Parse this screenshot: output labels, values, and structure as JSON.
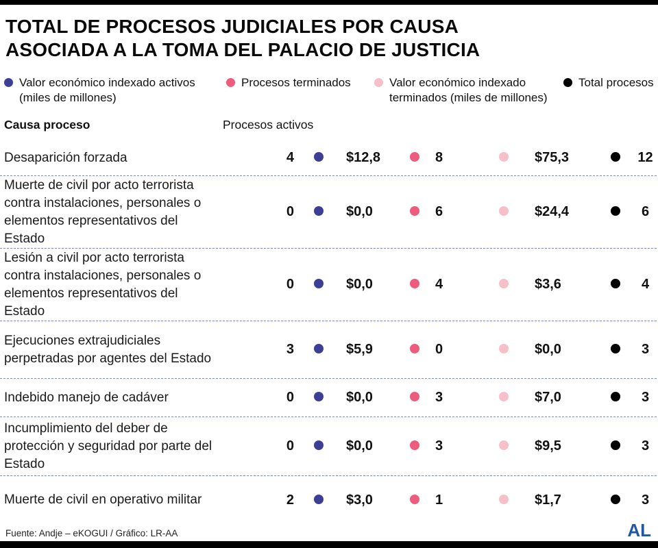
{
  "title": {
    "line1": "TOTAL DE PROCESOS JUDICIALES POR CAUSA",
    "line2": "ASOCIADA A LA TOMA DEL PALACIO DE JUSTICIA"
  },
  "legend": [
    {
      "label": "Valor económico indexado activos (miles de millones)"
    },
    {
      "label": "Procesos terminados"
    },
    {
      "label": "Valor económico indexado terminados (miles de millones)"
    },
    {
      "label": "Total procesos"
    }
  ],
  "colors": {
    "active_value": "#3c3f94",
    "terminated": "#ed5b7d",
    "terminated_value": "#f6c0ca",
    "total": "#000000",
    "dashed_line": "#8089b9",
    "accent_logo": "#2457a0"
  },
  "columns": {
    "cause": "Causa proceso",
    "active": "Procesos activos"
  },
  "rows": [
    {
      "cause": "Desaparición forzada",
      "active": "4",
      "active_value": "$12,8",
      "terminated": "8",
      "terminated_value": "$75,3",
      "total": "12"
    },
    {
      "cause": "Muerte de civil por acto terrorista contra instalaciones, personales o elementos representativos del Estado",
      "active": "0",
      "active_value": "$0,0",
      "terminated": "6",
      "terminated_value": "$24,4",
      "total": "6"
    },
    {
      "cause": "Lesión a civil por acto terrorista contra instalaciones, personales o elementos representativos del Estado",
      "active": "0",
      "active_value": "$0,0",
      "terminated": "4",
      "terminated_value": "$3,6",
      "total": "4"
    },
    {
      "cause": "Ejecuciones extrajudiciales perpetradas por agentes del Estado",
      "active": "3",
      "active_value": "$5,9",
      "terminated": "0",
      "terminated_value": "$0,0",
      "total": "3"
    },
    {
      "cause": "Indebido manejo de cadáver",
      "active": "0",
      "active_value": "$0,0",
      "terminated": "3",
      "terminated_value": "$7,0",
      "total": "3"
    },
    {
      "cause": "Incumplimiento del deber de protección y seguridad por parte del Estado",
      "active": "0",
      "active_value": "$0,0",
      "terminated": "3",
      "terminated_value": "$9,5",
      "total": "3"
    },
    {
      "cause": "Muerte de civil en operativo militar",
      "active": "2",
      "active_value": "$3,0",
      "terminated": "1",
      "terminated_value": "$1,7",
      "total": "3"
    }
  ],
  "footer": {
    "source": "Fuente: Andje – eKOGUI / Gráfico: LR-AA",
    "logo": "AL"
  },
  "chart_data": {
    "type": "table",
    "title": "Total de procesos judiciales por causa asociada a la toma del Palacio de Justicia",
    "columns": [
      "Causa proceso",
      "Procesos activos",
      "Valor económico indexado activos (miles de millones)",
      "Procesos terminados",
      "Valor económico indexado terminados (miles de millones)",
      "Total procesos"
    ],
    "rows": [
      [
        "Desaparición forzada",
        4,
        12.8,
        8,
        75.3,
        12
      ],
      [
        "Muerte de civil por acto terrorista contra instalaciones, personales o elementos representativos del Estado",
        0,
        0.0,
        6,
        24.4,
        6
      ],
      [
        "Lesión a civil por acto terrorista contra instalaciones, personales o elementos representativos del Estado",
        0,
        0.0,
        4,
        3.6,
        4
      ],
      [
        "Ejecuciones extrajudiciales perpetradas por agentes del Estado",
        3,
        5.9,
        0,
        0.0,
        3
      ],
      [
        "Indebido manejo de cadáver",
        0,
        0.0,
        3,
        7.0,
        3
      ],
      [
        "Incumplimiento del deber de protección y seguridad por parte del Estado",
        0,
        0.0,
        3,
        9.5,
        3
      ],
      [
        "Muerte de civil en operativo militar",
        2,
        3.0,
        1,
        1.7,
        3
      ]
    ]
  }
}
